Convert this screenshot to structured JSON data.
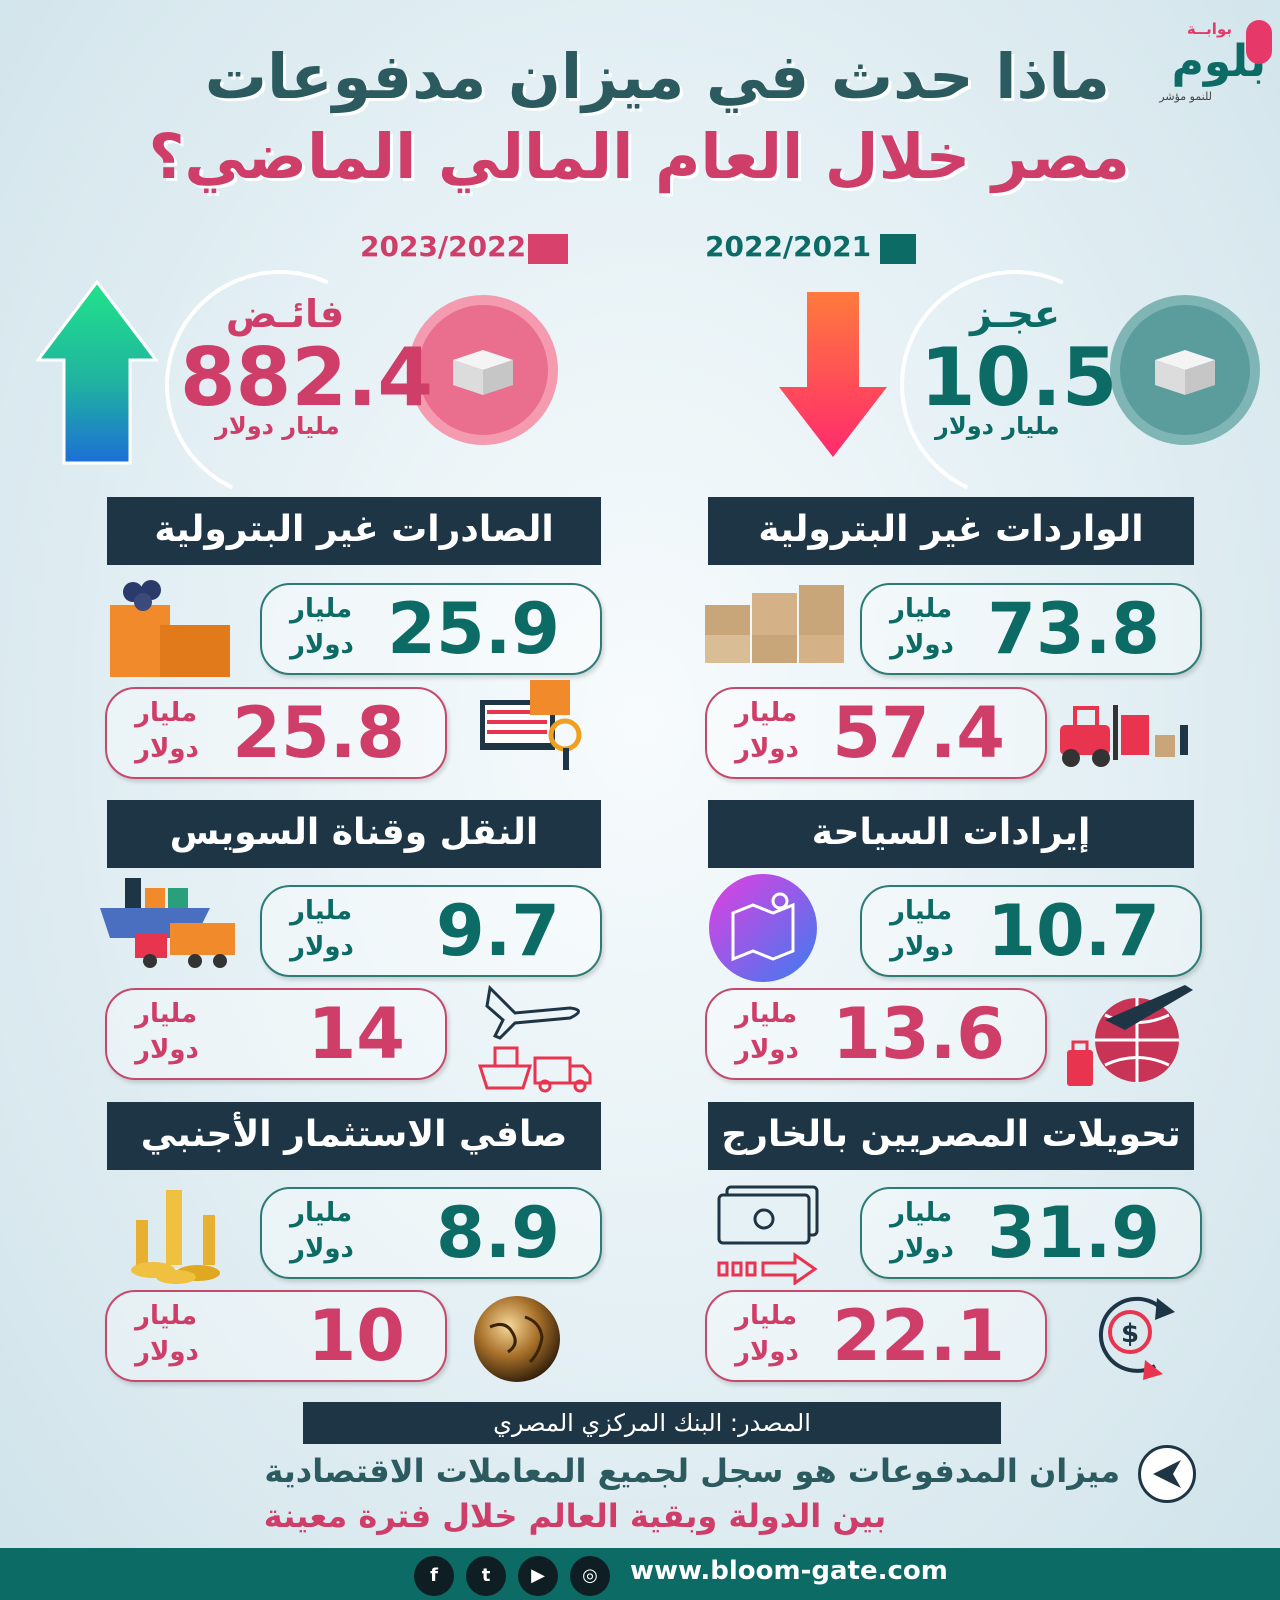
{
  "header": {
    "title_line1": "ماذا حدث في ميزان مدفوعات",
    "title_line2": "مصر خلال العام المالي الماضي؟",
    "logo_top": "بوابــة",
    "logo_main": "بلوم",
    "logo_sub": "للنمو مؤشر"
  },
  "legend": {
    "year_a": "2022/2021",
    "year_b": "2023/2022",
    "color_a": "#0d6b66",
    "color_b": "#d9416d"
  },
  "overview": {
    "a": {
      "label": "عجـز",
      "value": "10.5",
      "unit": "مليار دولار",
      "direction": "down"
    },
    "b": {
      "label": "فائـض",
      "value": "882.4",
      "unit": "مليار دولار",
      "direction": "up"
    }
  },
  "unit": {
    "line1": "مليار",
    "line2": "دولار"
  },
  "sections": {
    "non_oil_imports": {
      "title": "الواردات غير البترولية",
      "value_a": "73.8",
      "value_b": "57.4"
    },
    "non_oil_exports": {
      "title": "الصادرات غير البترولية",
      "value_a": "25.9",
      "value_b": "25.8"
    },
    "tourism": {
      "title": "إيرادات السياحة",
      "value_a": "10.7",
      "value_b": "13.6"
    },
    "transport_suez": {
      "title": "النقل وقناة السويس",
      "value_a": "9.7",
      "value_b": "14"
    },
    "remittances": {
      "title": "تحويلات المصريين بالخارج",
      "value_a": "31.9",
      "value_b": "22.1"
    },
    "fdi": {
      "title": "صافي الاستثمار الأجنبي",
      "value_a": "8.9",
      "value_b": "10"
    }
  },
  "footer": {
    "source": "المصدر: البنك المركزي المصري",
    "desc_line1": "ميزان المدفوعات هو سجل لجميع المعاملات الاقتصادية",
    "desc_line2": "بين الدولة وبقية العالم خلال فترة معينة",
    "website": "www.bloom-gate.com",
    "social": [
      "facebook-icon",
      "twitter-icon",
      "youtube-icon",
      "instagram-icon"
    ]
  }
}
